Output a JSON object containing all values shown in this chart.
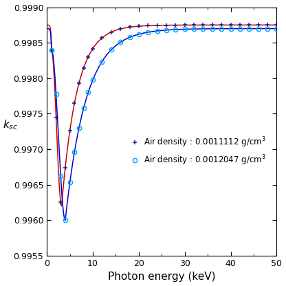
{
  "xlabel": "Photon energy (keV)",
  "ylabel": "$k_{sc}$",
  "xlim": [
    0,
    50
  ],
  "ylim": [
    0.9955,
    0.999
  ],
  "yticks": [
    0.9955,
    0.996,
    0.9965,
    0.997,
    0.9975,
    0.998,
    0.9985,
    0.999
  ],
  "xticks": [
    0,
    10,
    20,
    30,
    40,
    50
  ],
  "series1_label": "Air density : 0.0011112 g/cm$^3$",
  "series2_label": "Air density : 0.0012047 g/cm$^3$",
  "series1_marker_color": "#1a1a8c",
  "series2_marker_color": "#00aaff",
  "curve1_color": "#cc0000",
  "curve2_color": "#0000cc",
  "background_color": "#ffffff",
  "legend_fontsize": 8.5,
  "axis_label_fontsize": 11,
  "curve1_asym": 0.99875,
  "curve1_dip": 0.9962,
  "curve1_dip_x": 3.2,
  "curve1_rate": 0.3,
  "curve2_asym": 0.9987,
  "curve2_dip": 0.996,
  "curve2_dip_x": 4.0,
  "curve2_rate": 0.22
}
